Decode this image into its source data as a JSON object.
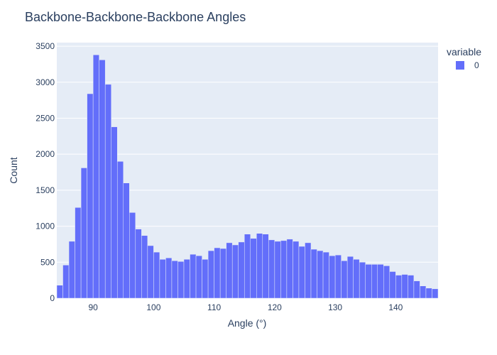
{
  "chart_data": {
    "type": "bar",
    "title": "Backbone-Backbone-Backbone Angles",
    "xlabel": "Angle (°)",
    "ylabel": "Count",
    "legend_title": "variable",
    "legend_position": "top-right",
    "grid": true,
    "xlim": [
      84,
      147
    ],
    "ylim": [
      0,
      3550
    ],
    "x_ticks": [
      90,
      100,
      110,
      120,
      130,
      140
    ],
    "y_ticks": [
      0,
      500,
      1000,
      1500,
      2000,
      2500,
      3000,
      3500
    ],
    "bin_width": 1,
    "series": [
      {
        "name": "0",
        "color": "#636efa",
        "x": [
          84.5,
          85.5,
          86.5,
          87.5,
          88.5,
          89.5,
          90.5,
          91.5,
          92.5,
          93.5,
          94.5,
          95.5,
          96.5,
          97.5,
          98.5,
          99.5,
          100.5,
          101.5,
          102.5,
          103.5,
          104.5,
          105.5,
          106.5,
          107.5,
          108.5,
          109.5,
          110.5,
          111.5,
          112.5,
          113.5,
          114.5,
          115.5,
          116.5,
          117.5,
          118.5,
          119.5,
          120.5,
          121.5,
          122.5,
          123.5,
          124.5,
          125.5,
          126.5,
          127.5,
          128.5,
          129.5,
          130.5,
          131.5,
          132.5,
          133.5,
          134.5,
          135.5,
          136.5,
          137.5,
          138.5,
          139.5,
          140.5,
          141.5,
          142.5,
          143.5,
          144.5,
          145.5,
          146.5
        ],
        "values": [
          180,
          460,
          790,
          1260,
          1810,
          2840,
          3380,
          3310,
          2970,
          2380,
          1900,
          1600,
          1190,
          960,
          870,
          730,
          640,
          540,
          560,
          520,
          510,
          540,
          610,
          590,
          540,
          660,
          700,
          690,
          770,
          740,
          780,
          890,
          830,
          900,
          890,
          810,
          790,
          800,
          820,
          790,
          720,
          770,
          680,
          660,
          640,
          590,
          600,
          520,
          580,
          540,
          500,
          470,
          470,
          470,
          450,
          370,
          320,
          330,
          320,
          240,
          170,
          140,
          130
        ]
      }
    ]
  }
}
